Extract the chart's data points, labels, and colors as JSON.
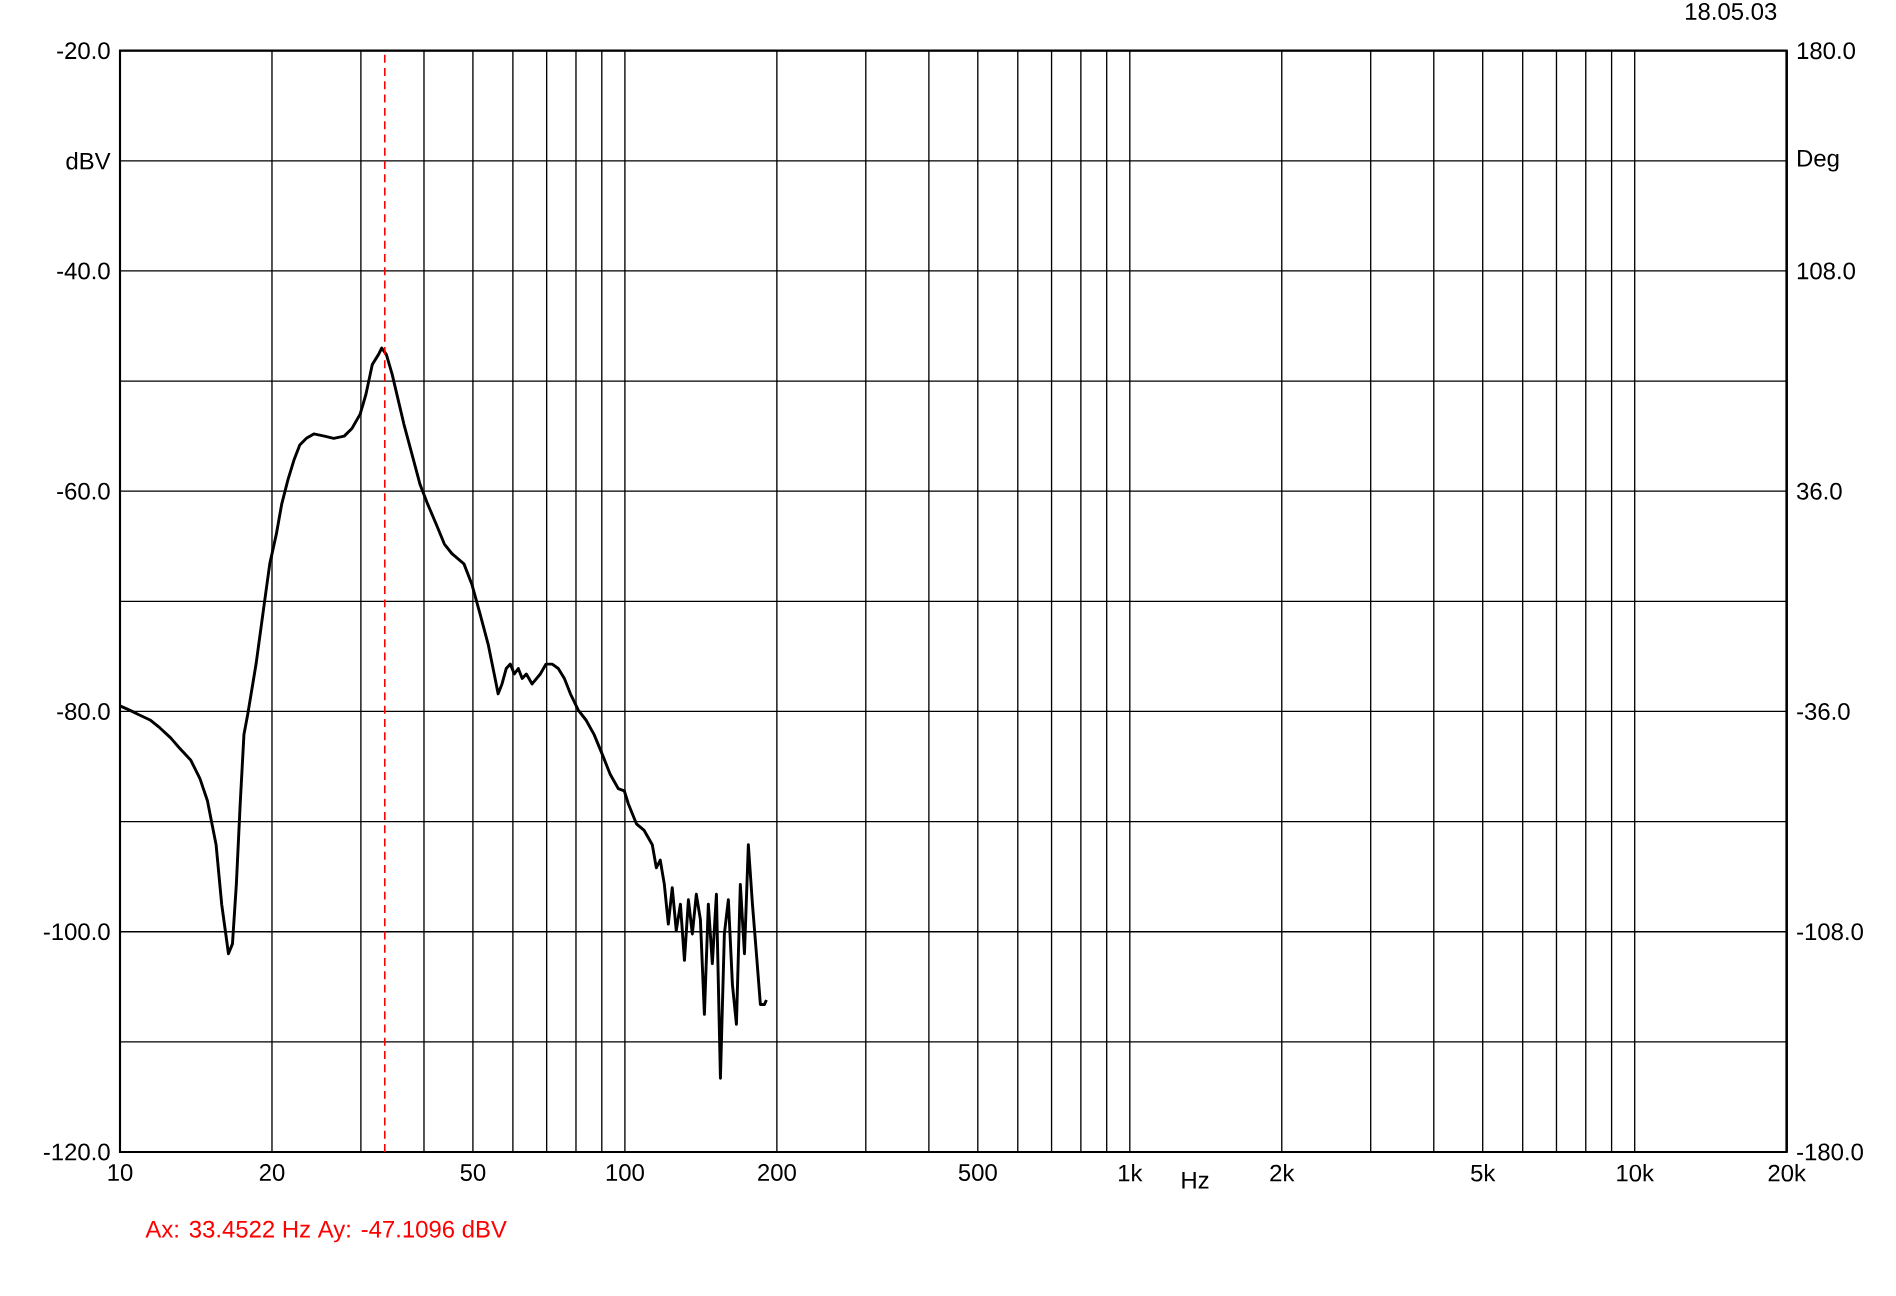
{
  "chart_data": {
    "type": "line",
    "annotations": [
      "18.05.03",
      "Ax: 33.4522 Hz  Ay: -47.1096 dBV"
    ],
    "xlabel": "Hz",
    "ylabel": "dBV",
    "y2label": "Deg",
    "log": "x",
    "grid": true,
    "marker": "none",
    "line_style": "solid",
    "xlim": [
      10,
      20000
    ],
    "xticks": [
      10,
      {
        "value": 20,
        "label": "20"
      },
      {
        "value": 30,
        "label": null
      },
      {
        "value": 40,
        "label": null
      },
      {
        "value": 50,
        "label": "50"
      },
      {
        "value": 60,
        "label": null
      },
      {
        "value": 70,
        "label": null
      },
      {
        "value": 80,
        "label": null
      },
      {
        "value": 90,
        "label": null
      },
      100,
      {
        "value": 200,
        "label": "200"
      },
      {
        "value": 300,
        "label": null
      },
      {
        "value": 400,
        "label": null
      },
      {
        "value": 500,
        "label": "500"
      },
      {
        "value": 600,
        "label": null
      },
      {
        "value": 700,
        "label": null
      },
      {
        "value": 800,
        "label": null
      },
      {
        "value": 900,
        "label": null
      },
      {
        "value": 1000,
        "label": "1k"
      },
      {
        "value": 2000,
        "label": "2k"
      },
      {
        "value": 3000,
        "label": null
      },
      {
        "value": 4000,
        "label": null
      },
      {
        "value": 5000,
        "label": "5k"
      },
      {
        "value": 6000,
        "label": null
      },
      {
        "value": 7000,
        "label": null
      },
      {
        "value": 8000,
        "label": null
      },
      {
        "value": 9000,
        "label": null
      },
      {
        "value": 10000,
        "label": "10k"
      },
      {
        "value": 20000,
        "label": "20k"
      }
    ],
    "ylim": [
      -120,
      -20
    ],
    "yticks": [
      {
        "value": -120,
        "label": "-120.0"
      },
      {
        "value": -110,
        "label": null
      },
      {
        "value": -100,
        "label": "-100.0"
      },
      {
        "value": -90,
        "label": null
      },
      {
        "value": -80,
        "label": "-80.0"
      },
      {
        "value": -70,
        "label": null
      },
      {
        "value": -60,
        "label": "-60.0"
      },
      {
        "value": -50,
        "label": null
      },
      {
        "value": -40,
        "label": "-40.0"
      },
      {
        "value": -30,
        "label": null
      },
      {
        "value": -20,
        "label": "-20.0"
      }
    ],
    "y2lim": [
      -180,
      180
    ],
    "y2ticks": [
      {
        "value": -180,
        "label": "-180.0"
      },
      {
        "value": -108,
        "label": "-108.0"
      },
      {
        "value": -36,
        "label": "-36.0"
      },
      {
        "value": 36,
        "label": "36.0"
      },
      {
        "value": 108,
        "label": "108.0"
      },
      {
        "value": 180,
        "label": "180.0"
      }
    ],
    "ref_lines": [
      {
        "axis": "x",
        "value": 33.4522,
        "color": "#ff0000",
        "line_style": "dashed"
      }
    ],
    "series": [
      {
        "color": "#000000",
        "x": [
          10,
          10.47,
          10.9,
          11.5,
          12.0,
          12.6,
          13.1,
          13.8,
          14.4,
          14.9,
          15.5,
          15.9,
          16.2,
          16.4,
          16.7,
          17.0,
          17.3,
          17.6,
          17.9,
          18.6,
          19.3,
          19.8,
          20.4,
          20.9,
          21.5,
          22.1,
          22.7,
          23.4,
          24.2,
          25.4,
          26.5,
          27.8,
          28.8,
          29.9,
          30.7,
          31.6,
          32.5,
          33.0,
          33.7,
          34.6,
          35.6,
          36.5,
          37.9,
          39.3,
          40.7,
          42.3,
          43.9,
          45.5,
          48.0,
          49.8,
          51.7,
          53.6,
          55.1,
          56.1,
          57.1,
          58.2,
          59.3,
          60.4,
          61.5,
          62.6,
          63.8,
          65.5,
          68.0,
          69.8,
          71.8,
          73.8,
          75.9,
          78.0,
          80.9,
          83.8,
          86.9,
          90.2,
          93.5,
          97.0,
          99.7,
          101.6,
          105.4,
          109.2,
          113.3,
          115.4,
          117.5,
          119.7,
          121.9,
          124.1,
          126.4,
          128.8,
          131.2,
          133.6,
          136.0,
          138.5,
          141.1,
          143.7,
          146.3,
          149.0,
          151.8,
          154.6,
          157.4,
          160.3,
          163.3,
          166.3,
          169.3,
          172.5,
          175.6,
          178.9,
          182.2,
          185.5,
          189.0,
          190.7
        ],
        "values": [
          -79.5,
          -79.9,
          -80.3,
          -80.8,
          -81.5,
          -82.4,
          -83.3,
          -84.4,
          -86.1,
          -88.1,
          -92.1,
          -97.5,
          -100.2,
          -102.0,
          -101.1,
          -95.7,
          -88.4,
          -82.1,
          -80.3,
          -75.7,
          -70.3,
          -66.6,
          -63.9,
          -61.2,
          -59.0,
          -57.2,
          -55.8,
          -55.2,
          -54.8,
          -55.0,
          -55.2,
          -55.0,
          -54.3,
          -53.0,
          -51.2,
          -48.5,
          -47.6,
          -47.0,
          -47.6,
          -49.4,
          -51.8,
          -53.9,
          -56.7,
          -59.4,
          -61.2,
          -63.0,
          -64.8,
          -65.7,
          -66.6,
          -68.5,
          -71.2,
          -73.9,
          -76.6,
          -78.4,
          -77.5,
          -76.1,
          -75.7,
          -76.6,
          -76.1,
          -77.0,
          -76.6,
          -77.5,
          -76.6,
          -75.7,
          -75.7,
          -76.1,
          -77.0,
          -78.4,
          -79.9,
          -80.8,
          -82.1,
          -83.9,
          -85.7,
          -87.0,
          -87.2,
          -88.4,
          -90.2,
          -90.8,
          -92.1,
          -94.2,
          -93.5,
          -95.7,
          -99.3,
          -96.0,
          -99.9,
          -97.5,
          -102.6,
          -97.1,
          -100.2,
          -96.6,
          -98.9,
          -107.5,
          -97.5,
          -102.9,
          -96.6,
          -113.3,
          -100.2,
          -97.1,
          -104.8,
          -108.4,
          -95.7,
          -102.0,
          -92.1,
          -97.5,
          -102.0,
          -106.6,
          -106.6,
          -106.2
        ]
      }
    ]
  }
}
